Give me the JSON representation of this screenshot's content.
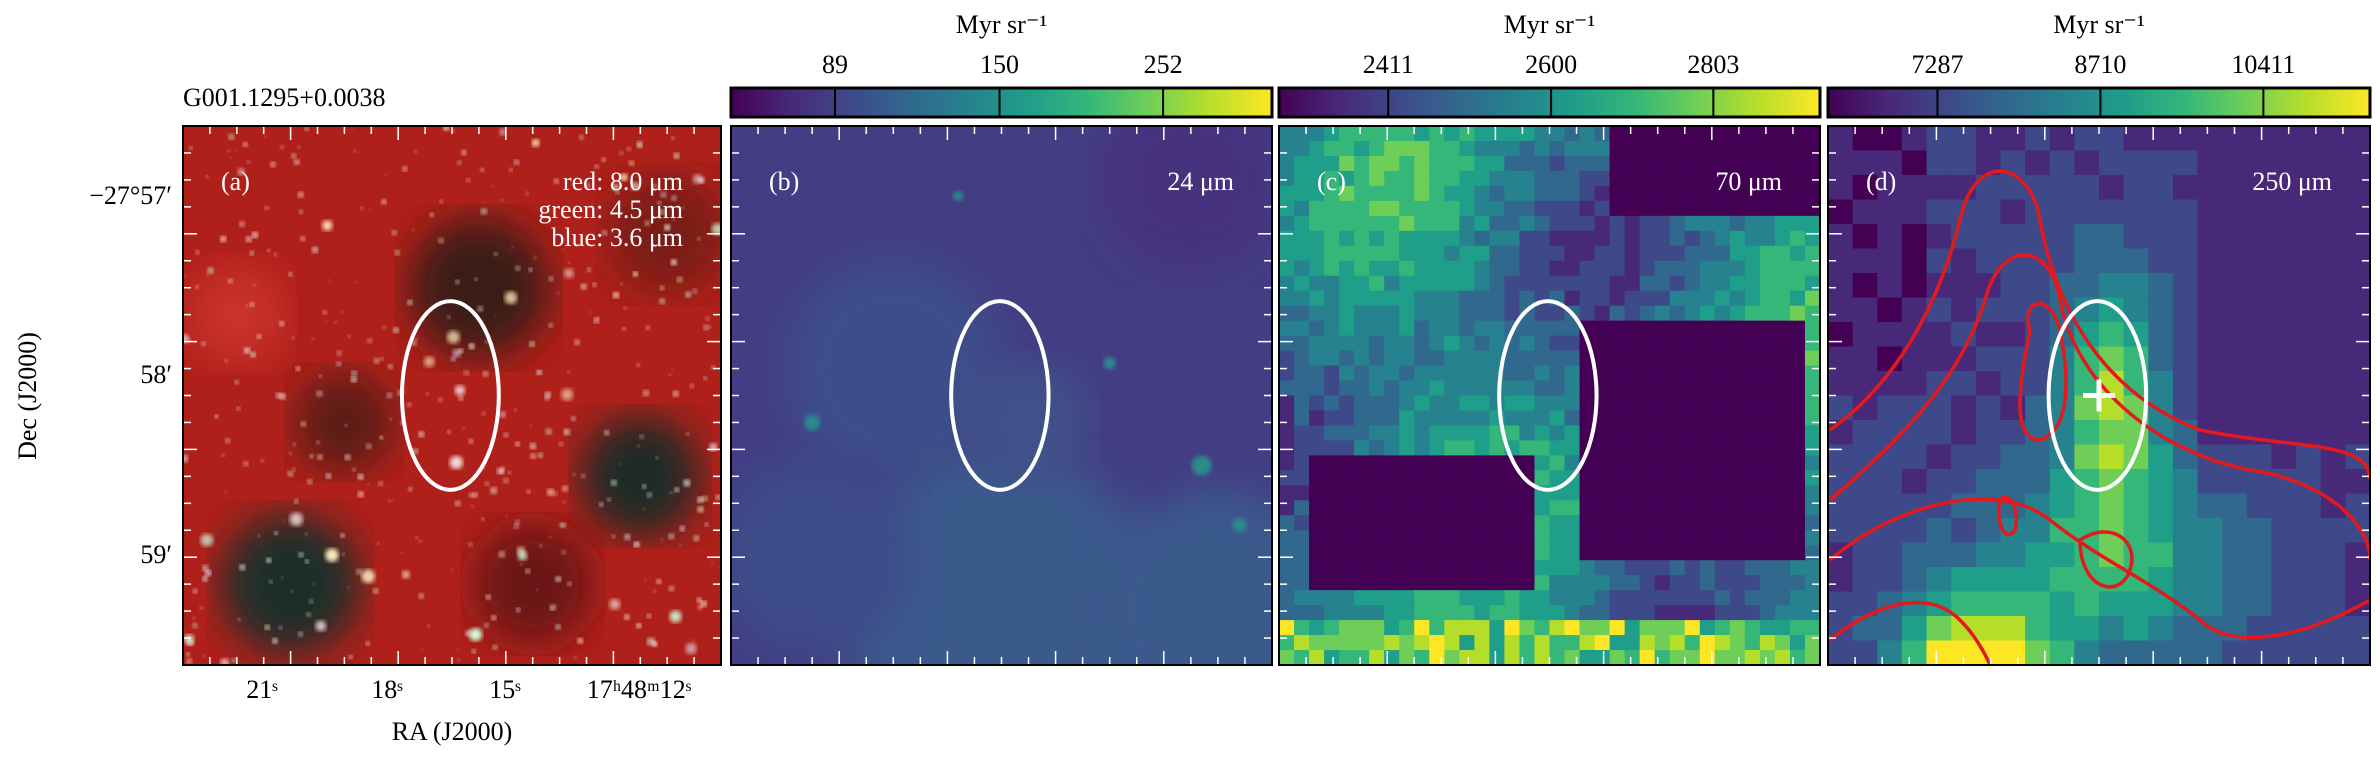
{
  "source": "G001.1295+0.0038",
  "x_axis_label": "RA (J2000)",
  "y_axis_label": "Dec (J2000)",
  "ra_ticks": [
    "21ˢ",
    "18ˢ",
    "15ˢ",
    "17ʰ48ᵐ12ˢ"
  ],
  "dec_ticks": [
    "−27°57′",
    "58′",
    "59′"
  ],
  "chart_data": [
    {
      "type": "image",
      "panel": "(a)",
      "bands": [
        "red: 8.0 μm",
        "green: 4.5 μm",
        "blue: 3.6 μm"
      ]
    },
    {
      "type": "image",
      "panel": "(b)",
      "band": "24 μm",
      "colorbar": {
        "label": "Myr sr⁻¹",
        "log": true,
        "lim": [
          64,
          356
        ],
        "ticks": [
          89,
          150,
          252
        ]
      }
    },
    {
      "type": "image",
      "panel": "(c)",
      "band": "70 μm",
      "colorbar": {
        "label": "Myr sr⁻¹",
        "log": true,
        "lim": [
          2292,
          2945
        ],
        "ticks": [
          2411,
          2600,
          2803
        ]
      }
    },
    {
      "type": "image",
      "panel": "(d)",
      "band": "250 μm",
      "colorbar": {
        "label": "Myr sr⁻¹",
        "log": true,
        "lim": [
          6464,
          11700
        ],
        "ticks": [
          7287,
          8710,
          10411
        ]
      }
    }
  ]
}
